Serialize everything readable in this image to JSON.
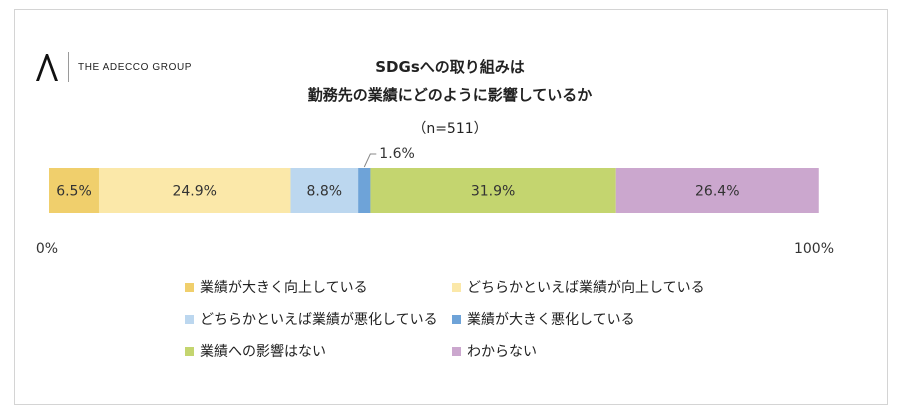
{
  "logo": {
    "text": "THE ADECCO GROUP",
    "icon": "adecco-a-logo-icon"
  },
  "title_lines": [
    "SDGsへの取り組みは",
    "勤務先の業績にどのように影響しているか"
  ],
  "sample": "（n=511）",
  "chart_data": {
    "type": "bar",
    "orientation": "horizontal-stacked-100",
    "categories": [
      ""
    ],
    "series": [
      {
        "name": "業績が大きく向上している",
        "values": [
          6.5
        ],
        "label": "6.5%",
        "color": "#f0cf6c"
      },
      {
        "name": "どちらかといえば業績が向上している",
        "values": [
          24.9
        ],
        "label": "24.9%",
        "color": "#fbe8a9"
      },
      {
        "name": "どちらかといえば業績が悪化している",
        "values": [
          8.8
        ],
        "label": "8.8%",
        "color": "#bcd7ef"
      },
      {
        "name": "業績が大きく悪化している",
        "values": [
          1.6
        ],
        "label": "1.6%",
        "color": "#6ea3d8"
      },
      {
        "name": "業績への影響はない",
        "values": [
          31.9
        ],
        "label": "31.9%",
        "color": "#c4d56f"
      },
      {
        "name": "わからない",
        "values": [
          26.4
        ],
        "label": "26.4%",
        "color": "#cba7ce"
      }
    ],
    "xlim": [
      0,
      100
    ],
    "axis_labels": [
      "0%",
      "100%"
    ],
    "legend_position": "bottom",
    "grid": false
  }
}
